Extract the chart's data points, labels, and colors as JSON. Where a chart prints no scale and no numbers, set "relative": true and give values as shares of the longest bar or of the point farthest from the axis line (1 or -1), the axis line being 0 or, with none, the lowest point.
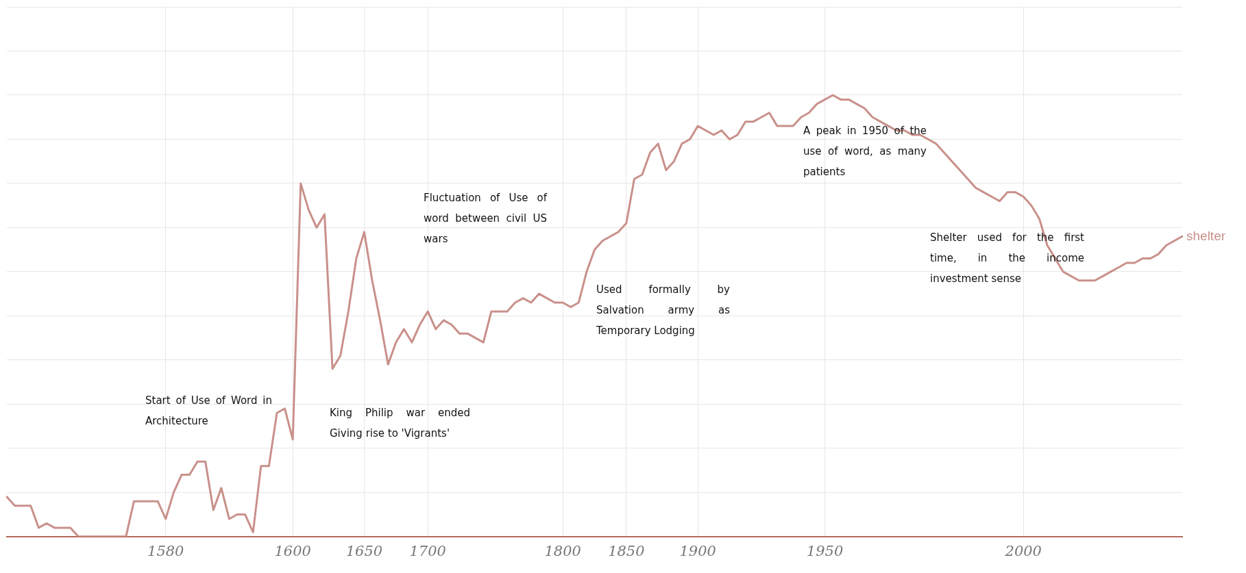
{
  "chart_data": {
    "type": "line",
    "relative": true,
    "grid": true,
    "marker": "none",
    "line_style": "solid",
    "categories": [
      null,
      null,
      null,
      null,
      null,
      null,
      null,
      null,
      null,
      null,
      null,
      null,
      null,
      null,
      null,
      null,
      null,
      null,
      null,
      null,
      "1580",
      null,
      null,
      null,
      null,
      null,
      null,
      null,
      null,
      null,
      null,
      null,
      null,
      null,
      null,
      null,
      "1600",
      null,
      null,
      null,
      null,
      null,
      null,
      null,
      null,
      "1650",
      null,
      null,
      null,
      null,
      null,
      null,
      null,
      "1700",
      null,
      null,
      null,
      null,
      null,
      null,
      null,
      null,
      null,
      null,
      null,
      null,
      null,
      null,
      null,
      null,
      "1800",
      null,
      null,
      null,
      null,
      null,
      null,
      null,
      "1850",
      null,
      null,
      null,
      null,
      null,
      null,
      null,
      null,
      "1900",
      null,
      null,
      null,
      null,
      null,
      null,
      null,
      null,
      null,
      null,
      null,
      null,
      null,
      null,
      null,
      "1950",
      null,
      null,
      null,
      null,
      null,
      null,
      null,
      null,
      null,
      null,
      null,
      null,
      null,
      null,
      null,
      null,
      null,
      null,
      null,
      null,
      null,
      null,
      null,
      null,
      "2000",
      null,
      null,
      null,
      null,
      null,
      null,
      null,
      null,
      null,
      null,
      null,
      null,
      null,
      null,
      null,
      null,
      null,
      null,
      null,
      null
    ],
    "series": [
      {
        "name": "shelter",
        "color": "#c9908a",
        "values": [
          0.09,
          0.07,
          0.07,
          0.07,
          0.02,
          0.03,
          0.02,
          0.02,
          0.02,
          0,
          0,
          0,
          0,
          0,
          0,
          0,
          0.08,
          0.08,
          0.08,
          0.08,
          0.04,
          0.1,
          0.14,
          0.14,
          0.17,
          0.17,
          0.06,
          0.11,
          0.04,
          0.05,
          0.05,
          0.01,
          0.16,
          0.16,
          0.28,
          0.29,
          0.22,
          0.8,
          0.74,
          0.7,
          0.73,
          0.38,
          0.41,
          0.51,
          0.63,
          0.69,
          0.58,
          0.49,
          0.39,
          0.44,
          0.47,
          0.44,
          0.48,
          0.51,
          0.47,
          0.49,
          0.48,
          0.46,
          0.46,
          0.45,
          0.44,
          0.51,
          0.51,
          0.51,
          0.53,
          0.54,
          0.53,
          0.55,
          0.54,
          0.53,
          0.53,
          0.52,
          0.53,
          0.6,
          0.65,
          0.67,
          0.68,
          0.69,
          0.71,
          0.81,
          0.82,
          0.87,
          0.89,
          0.83,
          0.85,
          0.89,
          0.9,
          0.93,
          0.92,
          0.91,
          0.92,
          0.9,
          0.91,
          0.94,
          0.94,
          0.95,
          0.96,
          0.93,
          0.93,
          0.93,
          0.95,
          0.96,
          0.98,
          0.99,
          1,
          0.99,
          0.99,
          0.98,
          0.97,
          0.95,
          0.94,
          0.93,
          0.92,
          0.92,
          0.91,
          0.91,
          0.9,
          0.89,
          0.87,
          0.85,
          0.83,
          0.81,
          0.79,
          0.78,
          0.77,
          0.76,
          0.78,
          0.78,
          0.77,
          0.75,
          0.72,
          0.66,
          0.63,
          0.6,
          0.59,
          0.58,
          0.58,
          0.58,
          0.59,
          0.6,
          0.61,
          0.62,
          0.62,
          0.63,
          0.63,
          0.64,
          0.66,
          0.67,
          0.68
        ]
      }
    ],
    "annotations": [
      "Start of Use of Word in Architecture",
      "King Philip war ended Giving rise to 'Vigrants'",
      "Fluctuation of Use of word between civil US wars",
      "Used formally by Salvation army as Temporary Lodging",
      "A peak in 1950 of the use of word, as many patients",
      "Shelter used for the first time, in the income investment sense"
    ]
  }
}
